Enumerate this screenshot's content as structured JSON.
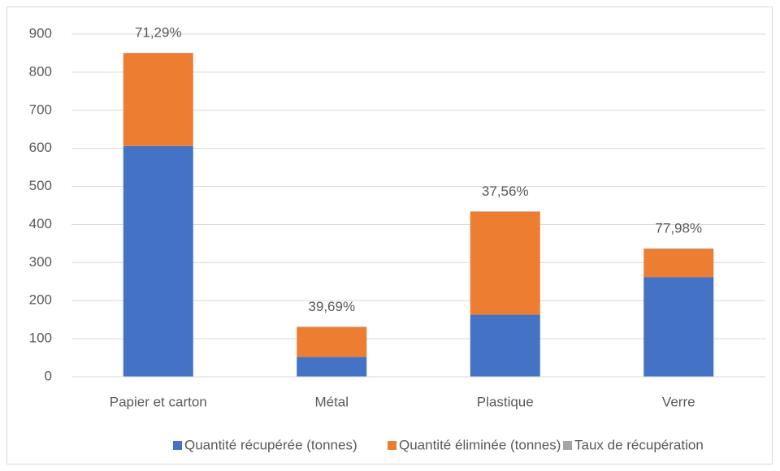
{
  "chart_data": {
    "type": "stacked_bar",
    "categories": [
      "Papier et carton",
      "Métal",
      "Plastique",
      "Verre"
    ],
    "series": [
      {
        "name": "Quantité récupérée (tonnes)",
        "color": "#4472c4",
        "values": [
          606,
          52,
          163,
          262
        ]
      },
      {
        "name": "Quantité éliminée (tonnes)",
        "color": "#ed7d31",
        "values": [
          244,
          79,
          271,
          74
        ]
      },
      {
        "name": "Taux de récupération",
        "color": "#a5a5a5",
        "values": [
          0.7129,
          0.3969,
          0.3756,
          0.7798
        ],
        "value_labels": [
          "71,29%",
          "39,69%",
          "37,56%",
          "77,98%"
        ]
      }
    ],
    "ylim": [
      0,
      900
    ],
    "yticks": [
      0,
      100,
      200,
      300,
      400,
      500,
      600,
      700,
      800,
      900
    ],
    "grid": true,
    "legend": "bottom"
  }
}
